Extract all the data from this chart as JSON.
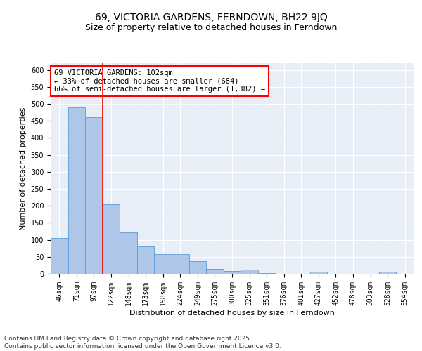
{
  "title": "69, VICTORIA GARDENS, FERNDOWN, BH22 9JQ",
  "subtitle": "Size of property relative to detached houses in Ferndown",
  "xlabel": "Distribution of detached houses by size in Ferndown",
  "ylabel": "Number of detached properties",
  "categories": [
    "46sqm",
    "71sqm",
    "97sqm",
    "122sqm",
    "148sqm",
    "173sqm",
    "198sqm",
    "224sqm",
    "249sqm",
    "275sqm",
    "300sqm",
    "325sqm",
    "351sqm",
    "376sqm",
    "401sqm",
    "427sqm",
    "452sqm",
    "478sqm",
    "503sqm",
    "528sqm",
    "554sqm"
  ],
  "values": [
    106,
    490,
    460,
    205,
    122,
    80,
    57,
    57,
    38,
    15,
    8,
    12,
    3,
    1,
    0,
    6,
    0,
    0,
    0,
    6,
    0
  ],
  "bar_color": "#aec6e8",
  "bar_edge_color": "#5b9bd5",
  "red_line_x": 2.5,
  "annotation_text": "69 VICTORIA GARDENS: 102sqm\n← 33% of detached houses are smaller (684)\n66% of semi-detached houses are larger (1,382) →",
  "annotation_box_color": "white",
  "annotation_box_edge_color": "red",
  "ylim": [
    0,
    620
  ],
  "yticks": [
    0,
    50,
    100,
    150,
    200,
    250,
    300,
    350,
    400,
    450,
    500,
    550,
    600
  ],
  "background_color": "#e8eef7",
  "grid_color": "white",
  "footer_text": "Contains HM Land Registry data © Crown copyright and database right 2025.\nContains public sector information licensed under the Open Government Licence v3.0.",
  "title_fontsize": 10,
  "subtitle_fontsize": 9,
  "axis_label_fontsize": 8,
  "tick_fontsize": 7,
  "annotation_fontsize": 7.5,
  "footer_fontsize": 6.5
}
